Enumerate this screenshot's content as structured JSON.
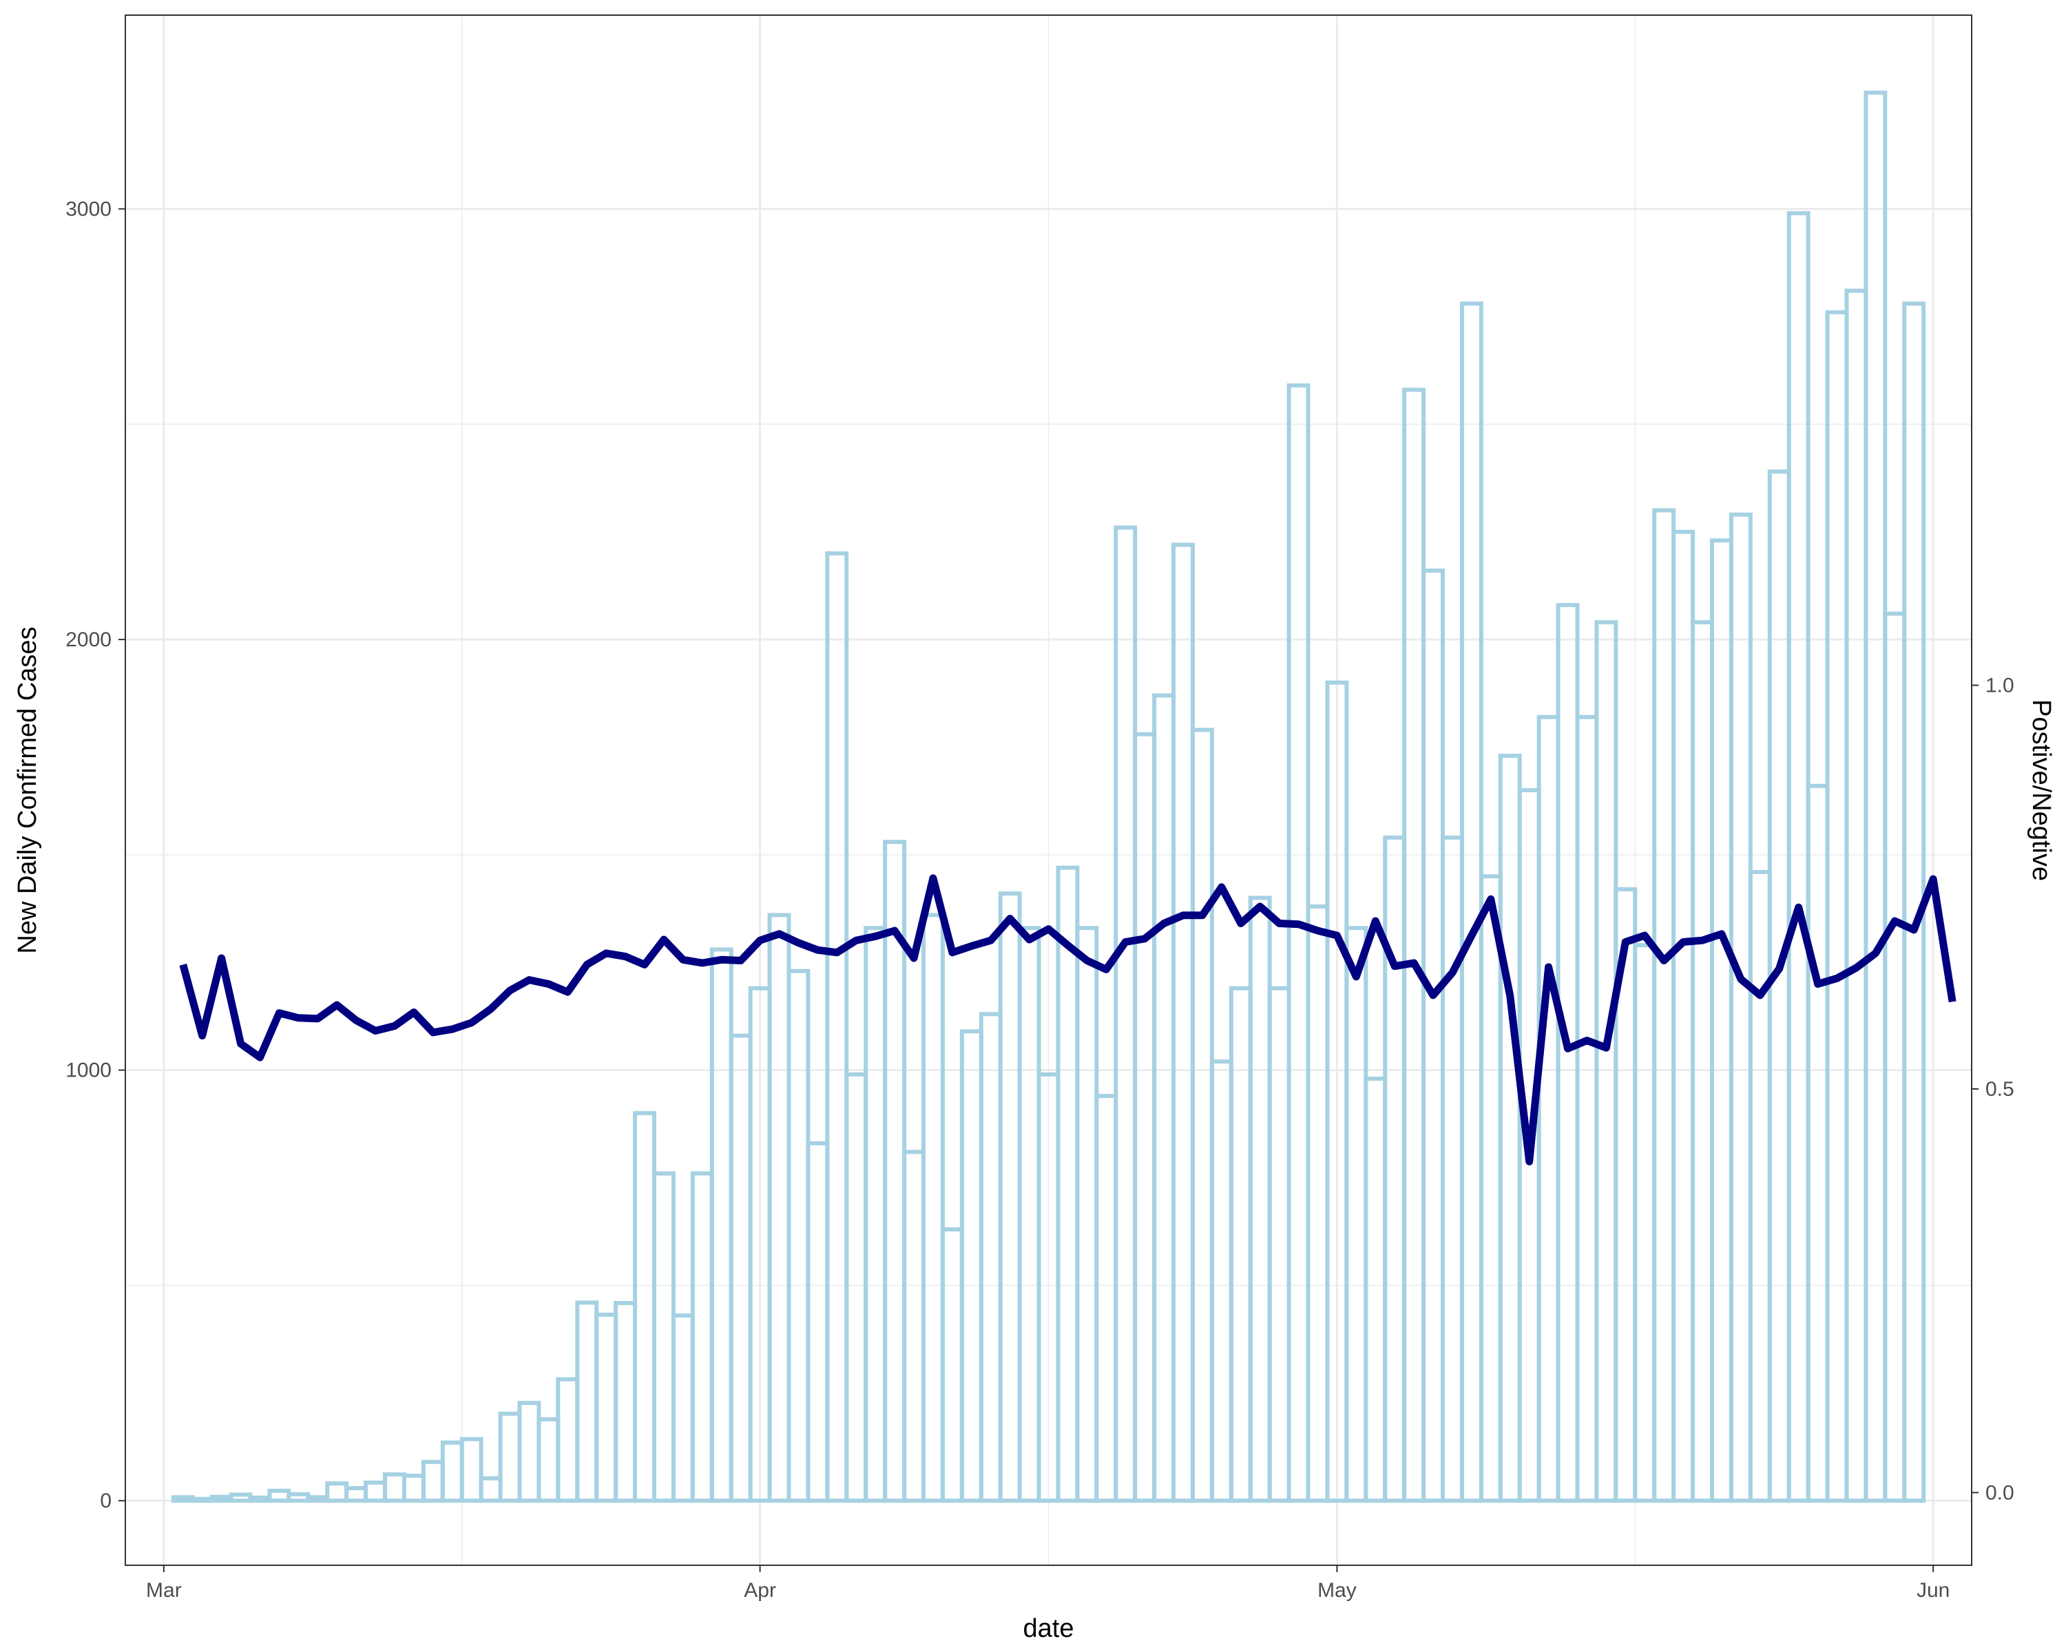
{
  "chart_data": {
    "type": "bar+line",
    "xlabel": "date",
    "ylabel": "New Daily Confirmed Cases",
    "ylabel_right": "Postive/Negtive",
    "x_ticks": [
      {
        "date": "2020-03-01",
        "label": "Mar"
      },
      {
        "date": "2020-04-01",
        "label": "Apr"
      },
      {
        "date": "2020-05-01",
        "label": "May"
      },
      {
        "date": "2020-06-01",
        "label": "Jun"
      }
    ],
    "y_ticks_left": [
      0,
      1000,
      2000,
      3000
    ],
    "y_ticks_right": [
      "0.0",
      "0.5",
      "1.0"
    ],
    "x_range": [
      "2020-02-28",
      "2020-06-03"
    ],
    "ylim_left": [
      -150,
      3450
    ],
    "ylim_right": [
      -0.09,
      1.83
    ],
    "grid": true,
    "colors": {
      "bar_outline": "#a6d1e3",
      "line": "#000080",
      "grid": "#ebebeb",
      "panel_border": "#333333"
    },
    "bars": {
      "name": "New Daily Confirmed Cases",
      "start_date": "2020-03-02",
      "values": [
        8,
        4,
        9,
        14,
        7,
        23,
        15,
        8,
        40,
        29,
        42,
        61,
        58,
        90,
        135,
        143,
        52,
        202,
        227,
        189,
        282,
        460,
        432,
        459,
        900,
        760,
        430,
        760,
        1280,
        1080,
        1190,
        1360,
        1230,
        830,
        2200,
        990,
        1330,
        1530,
        810,
        1360,
        630,
        1090,
        1130,
        1410,
        1330,
        990,
        1470,
        1330,
        940,
        2260,
        1780,
        1870,
        2220,
        1790,
        1020,
        1190,
        1400,
        1190,
        2590,
        1380,
        1900,
        1330,
        980,
        1540,
        2580,
        2160,
        1540,
        2780,
        1450,
        1730,
        1650,
        1820,
        2080,
        1820,
        2040,
        1420,
        1290,
        2300,
        2250,
        2040,
        2230,
        2290,
        1460,
        2390,
        2990,
        1660,
        2760,
        2810,
        3270,
        2060,
        2780
      ]
    },
    "line": {
      "name": "Postive/Negtive",
      "start_date": "2020-03-02",
      "values": [
        0.654,
        0.566,
        0.662,
        0.556,
        0.539,
        0.594,
        0.588,
        0.587,
        0.604,
        0.585,
        0.572,
        0.578,
        0.595,
        0.57,
        0.574,
        0.582,
        0.599,
        0.622,
        0.635,
        0.63,
        0.62,
        0.654,
        0.668,
        0.664,
        0.654,
        0.685,
        0.66,
        0.656,
        0.66,
        0.659,
        0.684,
        0.692,
        0.681,
        0.672,
        0.669,
        0.684,
        0.689,
        0.696,
        0.662,
        0.761,
        0.669,
        0.677,
        0.684,
        0.711,
        0.685,
        0.698,
        0.678,
        0.659,
        0.648,
        0.682,
        0.686,
        0.705,
        0.715,
        0.715,
        0.75,
        0.705,
        0.726,
        0.705,
        0.704,
        0.696,
        0.69,
        0.639,
        0.708,
        0.652,
        0.656,
        0.616,
        0.644,
        0.69,
        0.735,
        0.615,
        0.41,
        0.651,
        0.55,
        0.56,
        0.551,
        0.682,
        0.69,
        0.659,
        0.682,
        0.684,
        0.692,
        0.636,
        0.616,
        0.649,
        0.725,
        0.63,
        0.637,
        0.65,
        0.668,
        0.708,
        0.697,
        0.76,
        0.608
      ]
    }
  }
}
